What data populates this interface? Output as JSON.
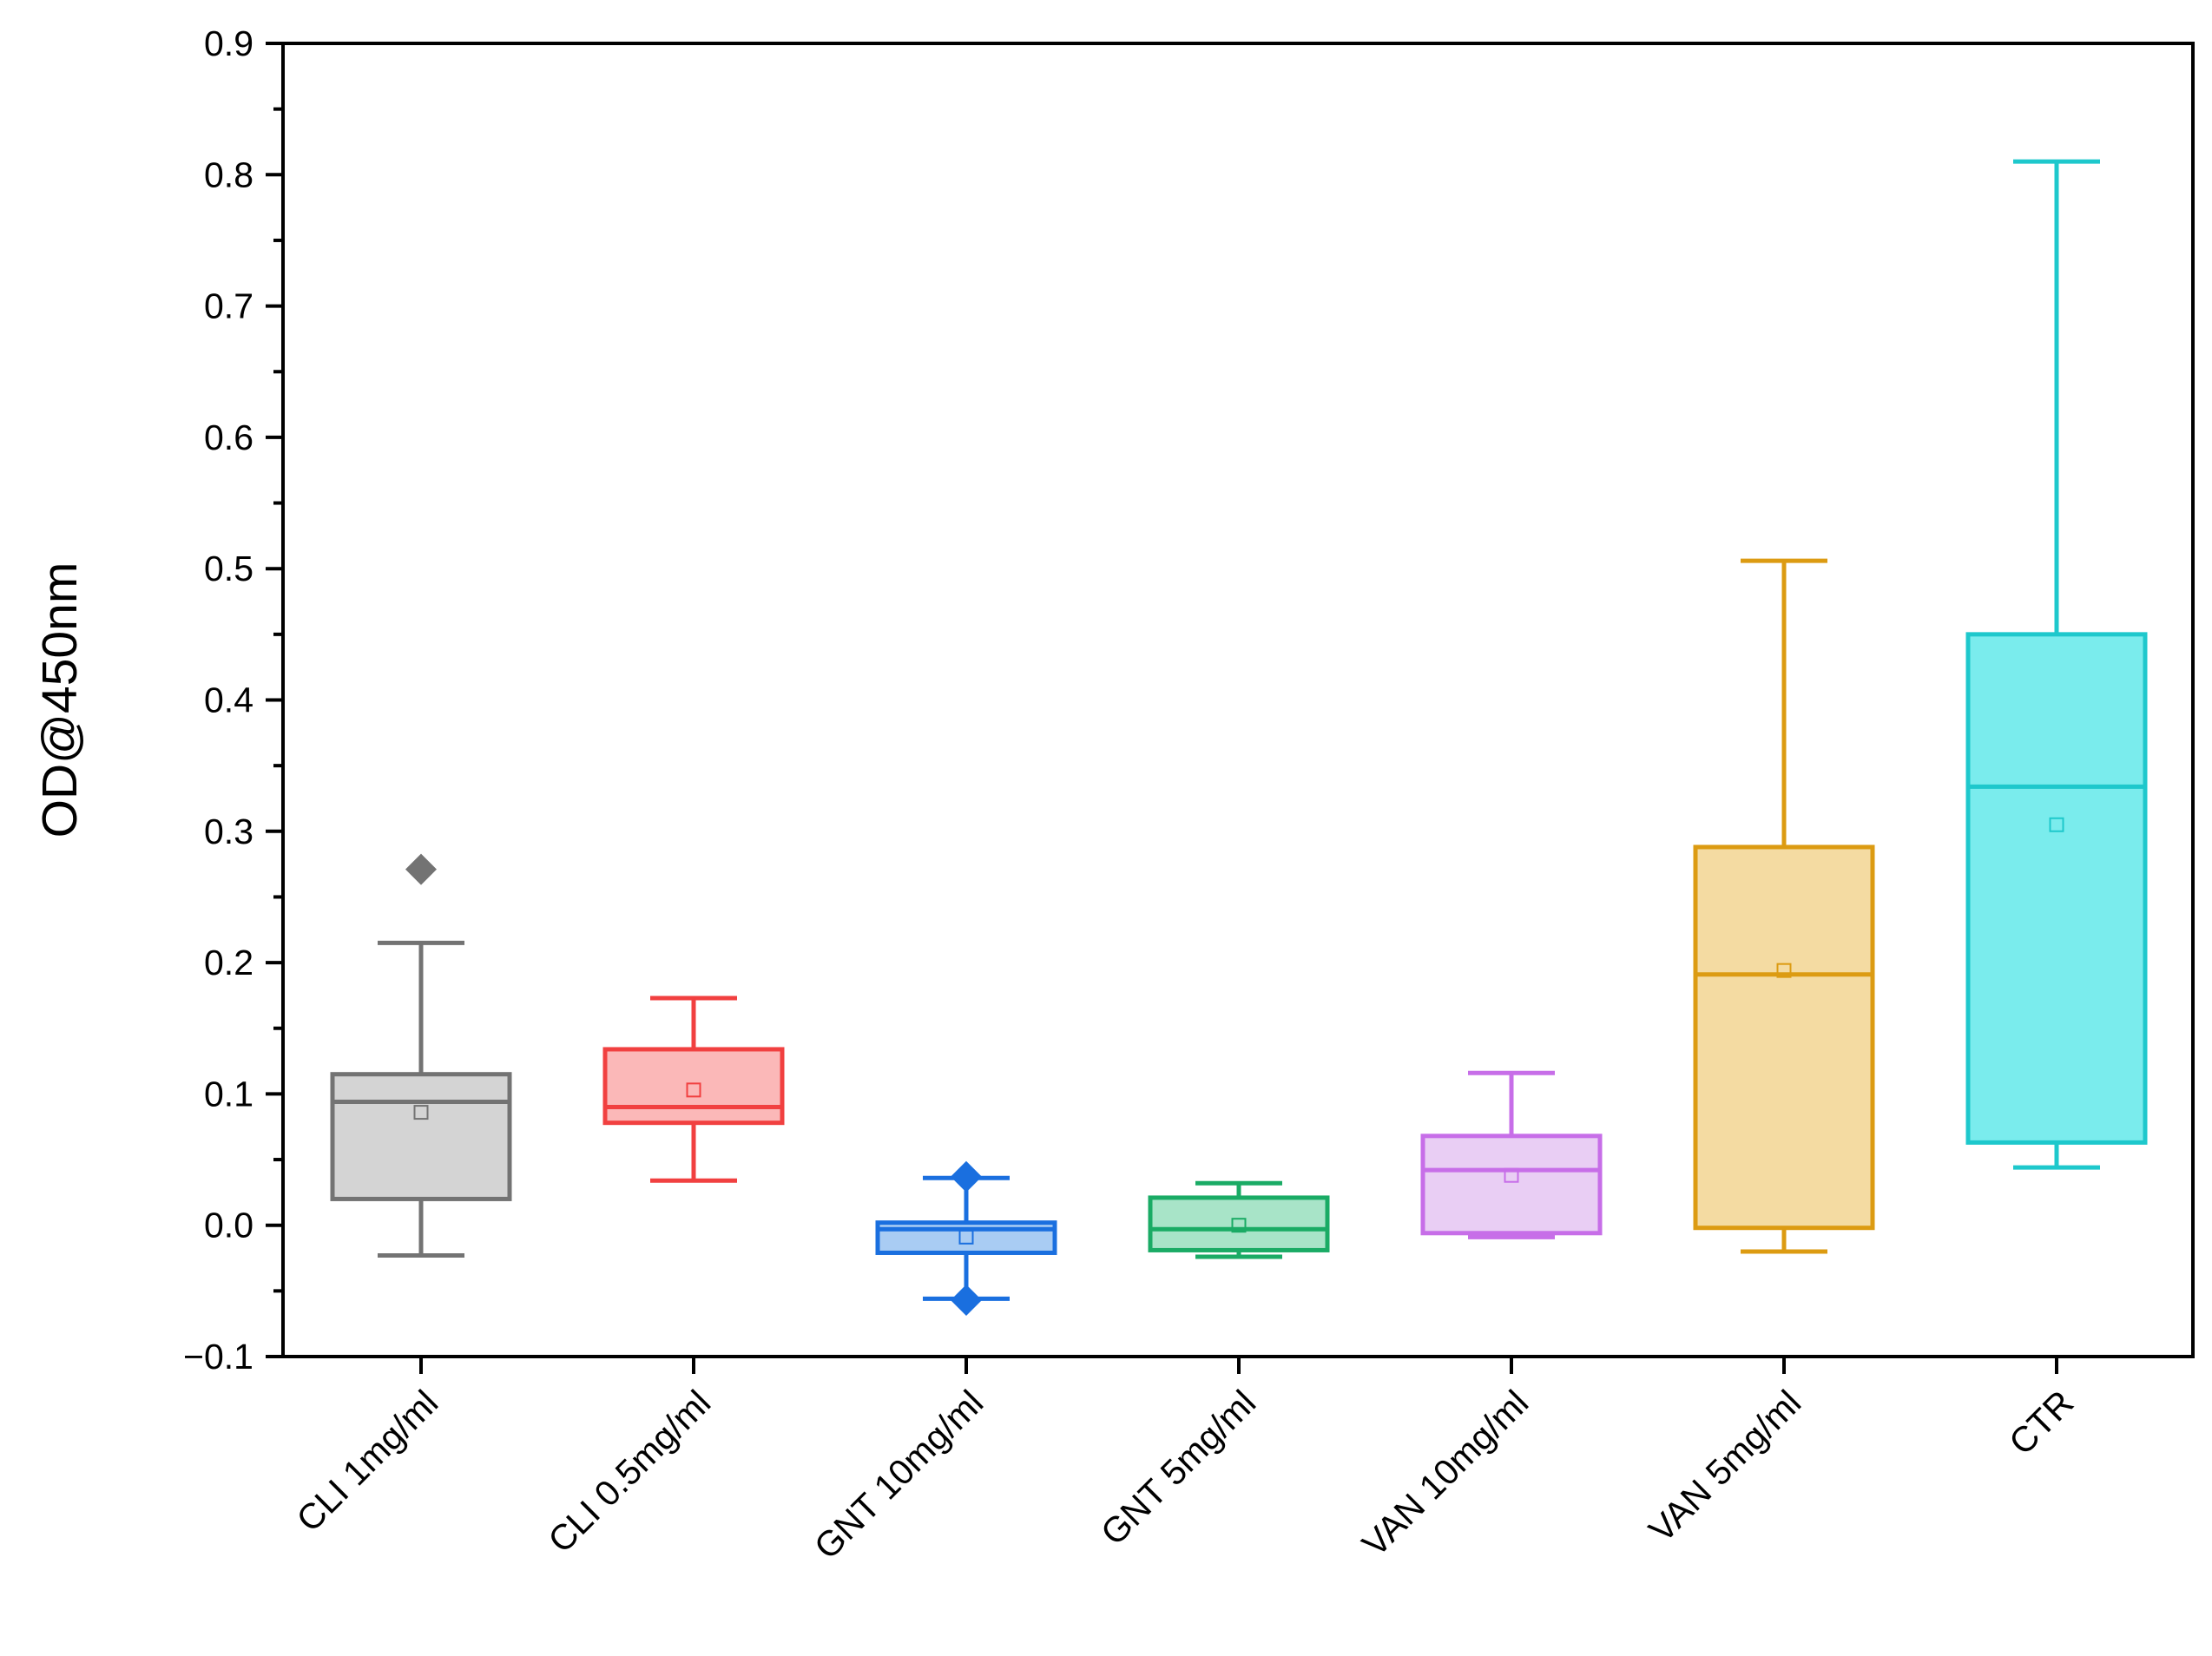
{
  "chart_data": {
    "type": "box",
    "title": "",
    "xlabel": "",
    "ylabel": "OD@450nm",
    "ylim": [
      -0.1,
      0.9
    ],
    "yticks": [
      -0.1,
      0.0,
      0.1,
      0.2,
      0.3,
      0.4,
      0.5,
      0.6,
      0.7,
      0.8,
      0.9
    ],
    "ytick_labels": [
      "−0.1",
      "0.0",
      "0.1",
      "0.2",
      "0.3",
      "0.4",
      "0.5",
      "0.6",
      "0.7",
      "0.8",
      "0.9"
    ],
    "grid": false,
    "categories": [
      "CLI 1mg/ml",
      "CLI 0.5mg/ml",
      "GNT 10mg/ml",
      "GNT 5mg/ml",
      "VAN 10mg/ml",
      "VAN 5mg/ml",
      "CTR"
    ],
    "boxes": [
      {
        "label": "CLI 1mg/ml",
        "whisker_low": -0.023,
        "q1": 0.02,
        "median": 0.094,
        "q3": 0.115,
        "whisker_high": 0.215,
        "mean": 0.086,
        "outliers": [
          0.271
        ],
        "color": "#737373",
        "fill": "#d4d4d4"
      },
      {
        "label": "CLI 0.5mg/ml",
        "whisker_low": 0.034,
        "q1": 0.078,
        "median": 0.09,
        "q3": 0.134,
        "whisker_high": 0.173,
        "mean": 0.103,
        "outliers": [],
        "color": "#f14040",
        "fill": "#fbb8b8"
      },
      {
        "label": "GNT 10mg/ml",
        "whisker_low": -0.056,
        "q1": -0.021,
        "median": -0.003,
        "q3": 0.002,
        "whisker_high": 0.036,
        "mean": -0.009,
        "outliers": [
          -0.057,
          0.037
        ],
        "color": "#1a6fdf",
        "fill": "#a9ccf3"
      },
      {
        "label": "GNT 5mg/ml",
        "whisker_low": -0.024,
        "q1": -0.019,
        "median": -0.003,
        "q3": 0.021,
        "whisker_high": 0.032,
        "mean": 0.0,
        "outliers": [],
        "color": "#1aab65",
        "fill": "#a8e4c8"
      },
      {
        "label": "VAN 10mg/ml",
        "whisker_low": -0.009,
        "q1": -0.006,
        "median": 0.042,
        "q3": 0.068,
        "whisker_high": 0.116,
        "mean": 0.038,
        "outliers": [],
        "color": "#c76ee8",
        "fill": "#e9cef4"
      },
      {
        "label": "VAN 5mg/ml",
        "whisker_low": -0.02,
        "q1": -0.002,
        "median": 0.191,
        "q3": 0.288,
        "whisker_high": 0.506,
        "mean": 0.194,
        "outliers": [],
        "color": "#dc9b12",
        "fill": "#f4dba2"
      },
      {
        "label": "CTR",
        "whisker_low": 0.044,
        "q1": 0.063,
        "median": 0.334,
        "q3": 0.45,
        "whisker_high": 0.81,
        "mean": 0.305,
        "outliers": [],
        "color": "#1ec8cc",
        "fill": "#7aeced"
      }
    ]
  }
}
